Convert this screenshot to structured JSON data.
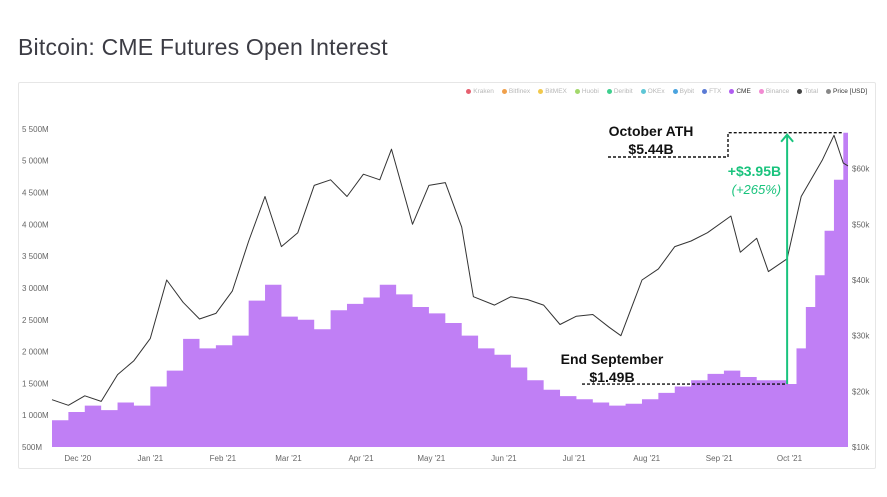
{
  "page_title": "Bitcoin: CME Futures Open Interest",
  "legend": [
    {
      "label": "Kraken",
      "color": "#e6606f",
      "active": false
    },
    {
      "label": "Bitfinex",
      "color": "#f0a04b",
      "active": false
    },
    {
      "label": "BitMEX",
      "color": "#f2c94c",
      "active": false
    },
    {
      "label": "Huobi",
      "color": "#a3d86b",
      "active": false
    },
    {
      "label": "Deribit",
      "color": "#3ecf8e",
      "active": false
    },
    {
      "label": "OKEx",
      "color": "#5ec6d6",
      "active": false
    },
    {
      "label": "Bybit",
      "color": "#4aa3df",
      "active": false
    },
    {
      "label": "FTX",
      "color": "#5b7bd5",
      "active": false
    },
    {
      "label": "CME",
      "color": "#b05cf0",
      "active": true
    },
    {
      "label": "Binance",
      "color": "#f28ad2",
      "active": false
    },
    {
      "label": "Total",
      "color": "#444444",
      "active": false
    },
    {
      "label": "Price [USD]",
      "color": "#888888",
      "active": true
    }
  ],
  "chart_data": {
    "type": "area",
    "title": "Bitcoin: CME Futures Open Interest",
    "x_ticks": [
      "Dec '20",
      "Jan '21",
      "Feb '21",
      "Mar '21",
      "Apr '21",
      "May '21",
      "Jun '21",
      "Jul '21",
      "Aug '21",
      "Sep '21",
      "Oct '21"
    ],
    "y_left_ticks": [
      "500M",
      "1 000M",
      "1 500M",
      "2 000M",
      "2 500M",
      "3 000M",
      "3 500M",
      "4 000M",
      "4 500M",
      "5 000M",
      "5 500M"
    ],
    "y_right_ticks": [
      "$10k",
      "$20k",
      "$30k",
      "$40k",
      "$50k",
      "$60k"
    ],
    "y_left_range": [
      500,
      5750
    ],
    "y_right_range": [
      10000,
      70000
    ],
    "series": [
      {
        "name": "CME",
        "color": "#c07ff5",
        "axis": "left",
        "points": [
          [
            "2020-11-20",
            920
          ],
          [
            "2020-11-27",
            1050
          ],
          [
            "2020-12-04",
            1150
          ],
          [
            "2020-12-11",
            1080
          ],
          [
            "2020-12-18",
            1200
          ],
          [
            "2020-12-25",
            1150
          ],
          [
            "2021-01-01",
            1450
          ],
          [
            "2021-01-08",
            1700
          ],
          [
            "2021-01-15",
            2200
          ],
          [
            "2021-01-22",
            2050
          ],
          [
            "2021-01-29",
            2100
          ],
          [
            "2021-02-05",
            2250
          ],
          [
            "2021-02-12",
            2800
          ],
          [
            "2021-02-19",
            3050
          ],
          [
            "2021-02-26",
            2550
          ],
          [
            "2021-03-05",
            2500
          ],
          [
            "2021-03-12",
            2350
          ],
          [
            "2021-03-19",
            2650
          ],
          [
            "2021-03-26",
            2750
          ],
          [
            "2021-04-02",
            2850
          ],
          [
            "2021-04-09",
            3050
          ],
          [
            "2021-04-16",
            2900
          ],
          [
            "2021-04-23",
            2700
          ],
          [
            "2021-04-30",
            2600
          ],
          [
            "2021-05-07",
            2450
          ],
          [
            "2021-05-14",
            2250
          ],
          [
            "2021-05-21",
            2050
          ],
          [
            "2021-05-28",
            1950
          ],
          [
            "2021-06-04",
            1750
          ],
          [
            "2021-06-11",
            1550
          ],
          [
            "2021-06-18",
            1400
          ],
          [
            "2021-06-25",
            1300
          ],
          [
            "2021-07-02",
            1250
          ],
          [
            "2021-07-09",
            1200
          ],
          [
            "2021-07-16",
            1150
          ],
          [
            "2021-07-23",
            1180
          ],
          [
            "2021-07-30",
            1250
          ],
          [
            "2021-08-06",
            1350
          ],
          [
            "2021-08-13",
            1450
          ],
          [
            "2021-08-20",
            1550
          ],
          [
            "2021-08-27",
            1650
          ],
          [
            "2021-09-03",
            1700
          ],
          [
            "2021-09-10",
            1600
          ],
          [
            "2021-09-17",
            1550
          ],
          [
            "2021-09-24",
            1550
          ],
          [
            "2021-09-30",
            1490
          ],
          [
            "2021-10-04",
            2050
          ],
          [
            "2021-10-08",
            2700
          ],
          [
            "2021-10-12",
            3200
          ],
          [
            "2021-10-16",
            3900
          ],
          [
            "2021-10-20",
            4700
          ],
          [
            "2021-10-24",
            5440
          ],
          [
            "2021-10-26",
            5300
          ]
        ]
      },
      {
        "name": "Price [USD]",
        "color": "#333333",
        "axis": "right",
        "points": [
          [
            "2020-11-20",
            18500
          ],
          [
            "2020-11-27",
            17500
          ],
          [
            "2020-12-04",
            19200
          ],
          [
            "2020-12-11",
            18200
          ],
          [
            "2020-12-18",
            23000
          ],
          [
            "2020-12-25",
            25500
          ],
          [
            "2021-01-01",
            29500
          ],
          [
            "2021-01-08",
            40000
          ],
          [
            "2021-01-15",
            36000
          ],
          [
            "2021-01-22",
            33000
          ],
          [
            "2021-01-29",
            34000
          ],
          [
            "2021-02-05",
            38000
          ],
          [
            "2021-02-12",
            47000
          ],
          [
            "2021-02-19",
            55000
          ],
          [
            "2021-02-26",
            46000
          ],
          [
            "2021-03-05",
            48500
          ],
          [
            "2021-03-12",
            57000
          ],
          [
            "2021-03-19",
            58000
          ],
          [
            "2021-03-26",
            55000
          ],
          [
            "2021-04-02",
            59000
          ],
          [
            "2021-04-09",
            58000
          ],
          [
            "2021-04-14",
            63500
          ],
          [
            "2021-04-23",
            50000
          ],
          [
            "2021-04-30",
            57000
          ],
          [
            "2021-05-07",
            57500
          ],
          [
            "2021-05-14",
            49500
          ],
          [
            "2021-05-19",
            37000
          ],
          [
            "2021-05-28",
            35500
          ],
          [
            "2021-06-04",
            37000
          ],
          [
            "2021-06-11",
            36500
          ],
          [
            "2021-06-18",
            35500
          ],
          [
            "2021-06-25",
            32000
          ],
          [
            "2021-07-02",
            33500
          ],
          [
            "2021-07-09",
            33800
          ],
          [
            "2021-07-16",
            31500
          ],
          [
            "2021-07-21",
            30000
          ],
          [
            "2021-07-30",
            40000
          ],
          [
            "2021-08-06",
            42000
          ],
          [
            "2021-08-13",
            46000
          ],
          [
            "2021-08-20",
            47000
          ],
          [
            "2021-08-27",
            48500
          ],
          [
            "2021-09-06",
            51500
          ],
          [
            "2021-09-10",
            45000
          ],
          [
            "2021-09-17",
            47500
          ],
          [
            "2021-09-22",
            41500
          ],
          [
            "2021-09-30",
            43800
          ],
          [
            "2021-10-06",
            55000
          ],
          [
            "2021-10-15",
            61500
          ],
          [
            "2021-10-20",
            66000
          ],
          [
            "2021-10-24",
            61000
          ],
          [
            "2021-10-26",
            60500
          ]
        ]
      }
    ],
    "annotations": [
      {
        "label": "October ATH",
        "value": "$5.44B"
      },
      {
        "label": "End September",
        "value": "$1.49B"
      },
      {
        "label": "+$3.95B",
        "sublabel": "(+265%)"
      }
    ],
    "grid": false,
    "legend_position": "top-right"
  }
}
